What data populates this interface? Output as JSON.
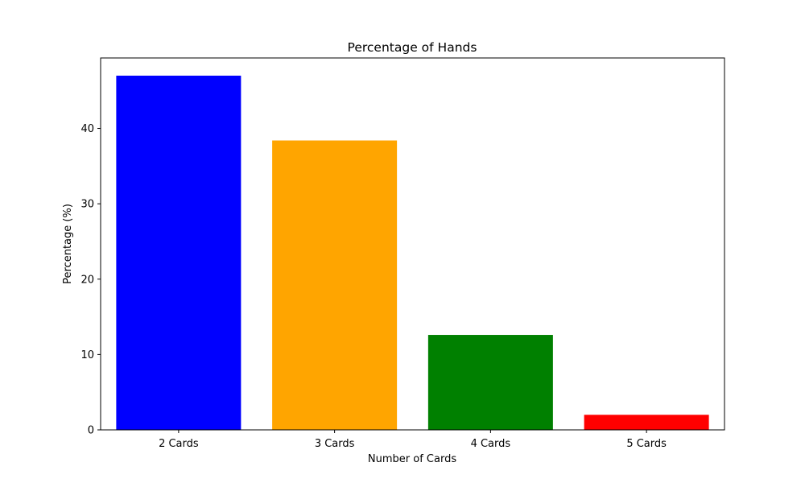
{
  "chart_data": {
    "type": "bar",
    "title": "Percentage of Hands",
    "xlabel": "Number of Cards",
    "ylabel": "Percentage (%)",
    "categories": [
      "2 Cards",
      "3 Cards",
      "4 Cards",
      "5 Cards"
    ],
    "values": [
      47.0,
      38.4,
      12.6,
      2.0
    ],
    "colors": [
      "#0000ff",
      "#ffa500",
      "#008000",
      "#ff0000"
    ],
    "ylim": [
      0,
      49.35
    ],
    "yticks": [
      0,
      10,
      20,
      30,
      40
    ],
    "grid": false,
    "legend": "none"
  }
}
